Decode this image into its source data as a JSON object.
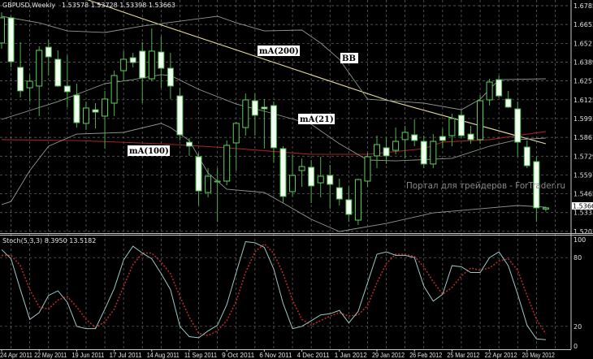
{
  "chart_data": {
    "type": "candlestick",
    "title": "GBPUSD,Weekly",
    "ohlc_readout": "1.53578 1.53728 1.53398 1.53663",
    "current_price": "1.53663",
    "price_axis_labels": [
      "1.67850",
      "1.66530",
      "1.65210",
      "1.63890",
      "1.62570",
      "1.61250",
      "1.59930",
      "1.58610",
      "1.57290",
      "1.55970",
      "1.54650",
      "1.53330",
      "1.52010"
    ],
    "x_tick_labels": [
      {
        "date": "2011-04-24",
        "label": "24 Apr 2011"
      },
      {
        "date": "2011-05-22",
        "label": "22 May 2011"
      },
      {
        "date": "2011-06-19",
        "label": "19 Jun 2011"
      },
      {
        "date": "2011-07-17",
        "label": "17 Jul 2011"
      },
      {
        "date": "2011-08-14",
        "label": "14 Aug 2011"
      },
      {
        "date": "2011-09-11",
        "label": "11 Sep 2011"
      },
      {
        "date": "2011-10-09",
        "label": "9 Oct 2011"
      },
      {
        "date": "2011-11-06",
        "label": "6 Nov 2011"
      },
      {
        "date": "2011-12-04",
        "label": "4 Dec 2011"
      },
      {
        "date": "2012-01-01",
        "label": "1 Jan 2012"
      },
      {
        "date": "2012-01-29",
        "label": "29 Jan 2012"
      },
      {
        "date": "2012-02-26",
        "label": "26 Feb 2012"
      },
      {
        "date": "2012-03-25",
        "label": "25 Mar 2012"
      },
      {
        "date": "2012-04-22",
        "label": "22 Apr 2012"
      },
      {
        "date": "2012-05-20",
        "label": "20 May 2012"
      }
    ],
    "grid": true,
    "colors": {
      "background": "#000000",
      "grid": "#6a6a6a",
      "bull": "#5fd05f",
      "bear_fill": "#f0fff0",
      "wick": "#4caf4c",
      "ma200": "#e6dca0",
      "ma100": "#a02424",
      "bands": "#8c9a8c",
      "stoch_k": "#9cc8c4",
      "stoch_d": "#b02a2a"
    },
    "candles_columns": [
      "date",
      "open",
      "high",
      "low",
      "close"
    ],
    "candles": [
      [
        "2011-04-24",
        1.6523,
        1.6739,
        1.6483,
        1.67
      ],
      [
        "2011-05-01",
        1.67,
        1.6711,
        1.6352,
        1.6392
      ],
      [
        "2011-05-08",
        1.6352,
        1.6529,
        1.6141,
        1.6187
      ],
      [
        "2011-05-15",
        1.6209,
        1.6301,
        1.6112,
        1.6255
      ],
      [
        "2011-05-22",
        1.6221,
        1.65,
        1.601,
        1.6472
      ],
      [
        "2011-05-29",
        1.6494,
        1.6546,
        1.6295,
        1.6426
      ],
      [
        "2011-06-05",
        1.6409,
        1.6472,
        1.6215,
        1.6221
      ],
      [
        "2011-06-12",
        1.6221,
        1.6437,
        1.6073,
        1.6181
      ],
      [
        "2011-06-19",
        1.6158,
        1.6238,
        1.593,
        1.5964
      ],
      [
        "2011-06-26",
        1.5959,
        1.6112,
        1.5913,
        1.6067
      ],
      [
        "2011-07-03",
        1.6055,
        1.6101,
        1.5924,
        1.6038
      ],
      [
        "2011-07-10",
        1.601,
        1.6187,
        1.5782,
        1.613
      ],
      [
        "2011-07-17",
        1.6101,
        1.6329,
        1.601,
        1.6295
      ],
      [
        "2011-07-24",
        1.6329,
        1.6466,
        1.6255,
        1.6409
      ],
      [
        "2011-07-31",
        1.642,
        1.6454,
        1.6352,
        1.6386
      ],
      [
        "2011-08-07",
        1.6466,
        1.6529,
        1.6101,
        1.6278
      ],
      [
        "2011-08-14",
        1.6272,
        1.6625,
        1.6255,
        1.6466
      ],
      [
        "2011-08-21",
        1.646,
        1.6568,
        1.6209,
        1.6346
      ],
      [
        "2011-08-28",
        1.6346,
        1.6454,
        1.613,
        1.6221
      ],
      [
        "2011-09-04",
        1.6152,
        1.6209,
        1.5839,
        1.5879
      ],
      [
        "2011-09-11",
        1.5827,
        1.5856,
        1.5731,
        1.5799
      ],
      [
        "2011-09-18",
        1.5725,
        1.5753,
        1.5383,
        1.5485
      ],
      [
        "2011-09-25",
        1.5474,
        1.5645,
        1.544,
        1.5588
      ],
      [
        "2011-10-02",
        1.5554,
        1.5645,
        1.5269,
        1.5548
      ],
      [
        "2011-10-09",
        1.5554,
        1.5839,
        1.5525,
        1.5805
      ],
      [
        "2011-10-16",
        1.5822,
        1.597,
        1.5628,
        1.5959
      ],
      [
        "2011-10-23",
        1.593,
        1.6169,
        1.5873,
        1.6124
      ],
      [
        "2011-10-30",
        1.6118,
        1.6169,
        1.5873,
        1.6016
      ],
      [
        "2011-11-06",
        1.6073,
        1.613,
        1.5782,
        1.6061
      ],
      [
        "2011-11-13",
        1.6084,
        1.6112,
        1.5685,
        1.5788
      ],
      [
        "2011-11-20",
        1.5782,
        1.5799,
        1.54,
        1.5446
      ],
      [
        "2011-11-27",
        1.548,
        1.5742,
        1.5446,
        1.5594
      ],
      [
        "2011-12-04",
        1.5628,
        1.5713,
        1.5514,
        1.5656
      ],
      [
        "2011-12-11",
        1.5651,
        1.5702,
        1.54,
        1.552
      ],
      [
        "2011-12-18",
        1.5542,
        1.5725,
        1.544,
        1.5588
      ],
      [
        "2011-12-25",
        1.5594,
        1.5668,
        1.536,
        1.5531
      ],
      [
        "2012-01-01",
        1.5508,
        1.5571,
        1.5383,
        1.5428
      ],
      [
        "2012-01-08",
        1.5423,
        1.5514,
        1.5269,
        1.532
      ],
      [
        "2012-01-15",
        1.528,
        1.5571,
        1.5246,
        1.5565
      ],
      [
        "2012-01-22",
        1.5554,
        1.5753,
        1.5514,
        1.5725
      ],
      [
        "2012-01-29",
        1.5731,
        1.5873,
        1.5645,
        1.581
      ],
      [
        "2012-02-05",
        1.5788,
        1.5856,
        1.5674,
        1.5731
      ],
      [
        "2012-02-12",
        1.577,
        1.593,
        1.5742,
        1.5833
      ],
      [
        "2012-02-19",
        1.5845,
        1.5941,
        1.5713,
        1.5896
      ],
      [
        "2012-02-26",
        1.5879,
        1.5987,
        1.5799,
        1.5839
      ],
      [
        "2012-03-04",
        1.5833,
        1.5873,
        1.5645,
        1.5674
      ],
      [
        "2012-03-11",
        1.5674,
        1.5884,
        1.5645,
        1.5833
      ],
      [
        "2012-03-18",
        1.5867,
        1.5924,
        1.5788,
        1.5839
      ],
      [
        "2012-03-25",
        1.5873,
        1.6027,
        1.5799,
        1.5993
      ],
      [
        "2012-04-01",
        1.6016,
        1.6055,
        1.5856,
        1.5873
      ],
      [
        "2012-04-08",
        1.5884,
        1.5941,
        1.5816,
        1.5845
      ],
      [
        "2012-04-15",
        1.5845,
        1.6158,
        1.5816,
        1.6118
      ],
      [
        "2012-04-22",
        1.6124,
        1.6272,
        1.6084,
        1.6249
      ],
      [
        "2012-04-29",
        1.6266,
        1.6295,
        1.6141,
        1.6152
      ],
      [
        "2012-05-06",
        1.613,
        1.6187,
        1.6067,
        1.6073
      ],
      [
        "2012-05-13",
        1.6061,
        1.6112,
        1.5731,
        1.5827
      ],
      [
        "2012-05-20",
        1.5793,
        1.5839,
        1.5645,
        1.5662
      ],
      [
        "2012-05-27",
        1.5691,
        1.5725,
        1.5269,
        1.5366
      ],
      [
        "2012-06-03",
        1.53578,
        1.53728,
        1.53398,
        1.53663
      ]
    ],
    "overlays": [
      {
        "name": "mA(200)",
        "key": "ma200",
        "points": [
          [
            "2011-06-26",
            1.683
          ],
          [
            "2011-08-07",
            1.6694
          ],
          [
            "2012-02-05",
            1.6124
          ],
          [
            "2012-06-03",
            1.5816
          ]
        ]
      },
      {
        "name": "mA(100)",
        "key": "ma100",
        "points": [
          [
            "2011-04-24",
            1.5845
          ],
          [
            "2011-06-19",
            1.5839
          ],
          [
            "2011-08-21",
            1.5816
          ],
          [
            "2011-10-09",
            1.5788
          ],
          [
            "2011-12-11",
            1.5742
          ],
          [
            "2012-01-22",
            1.5742
          ],
          [
            "2012-03-04",
            1.5782
          ],
          [
            "2012-03-18",
            1.5828
          ],
          [
            "2012-04-22",
            1.5845
          ],
          [
            "2012-06-03",
            1.5902
          ]
        ]
      },
      {
        "name": "mA(21)",
        "key": "bands",
        "points": [
          [
            "2011-04-24",
            1.5987
          ],
          [
            "2011-06-05",
            1.6112
          ],
          [
            "2011-07-10",
            1.6238
          ],
          [
            "2011-07-31",
            1.6266
          ],
          [
            "2011-08-21",
            1.6301
          ],
          [
            "2011-08-28",
            1.6295
          ],
          [
            "2011-09-18",
            1.6198
          ],
          [
            "2011-10-16",
            1.6095
          ],
          [
            "2011-11-13",
            1.6027
          ],
          [
            "2011-12-11",
            1.5953
          ],
          [
            "2012-01-01",
            1.5816
          ],
          [
            "2012-01-22",
            1.5702
          ],
          [
            "2012-02-12",
            1.5696
          ],
          [
            "2012-03-25",
            1.5714
          ],
          [
            "2012-04-22",
            1.5799
          ],
          [
            "2012-05-13",
            1.5845
          ],
          [
            "2012-06-03",
            1.5856
          ]
        ]
      },
      {
        "name": "BB",
        "key": "bands",
        "points": [
          [
            "2011-04-24",
            1.6711
          ],
          [
            "2011-05-22",
            1.6665
          ],
          [
            "2011-06-12",
            1.6608
          ],
          [
            "2011-07-10",
            1.6597
          ],
          [
            "2011-08-07",
            1.6642
          ],
          [
            "2011-10-02",
            1.6711
          ],
          [
            "2011-10-16",
            1.6665
          ],
          [
            "2011-11-06",
            1.6608
          ],
          [
            "2011-12-04",
            1.6614
          ],
          [
            "2011-12-18",
            1.6523
          ],
          [
            "2012-01-01",
            1.6409
          ],
          [
            "2012-01-22",
            1.6129
          ],
          [
            "2012-03-04",
            1.6101
          ],
          [
            "2012-04-01",
            1.6055
          ],
          [
            "2012-04-15",
            1.6129
          ],
          [
            "2012-04-29",
            1.6266
          ],
          [
            "2012-06-03",
            1.6272
          ]
        ]
      },
      {
        "name": "",
        "key": "bands",
        "points": [
          [
            "2011-04-24",
            1.5389
          ],
          [
            "2011-05-01",
            1.5411
          ],
          [
            "2011-05-15",
            1.5628
          ],
          [
            "2011-05-29",
            1.5799
          ],
          [
            "2011-06-12",
            1.5856
          ],
          [
            "2011-06-19",
            1.5884
          ],
          [
            "2011-07-24",
            1.5896
          ],
          [
            "2011-08-21",
            1.5959
          ],
          [
            "2011-08-28",
            1.593
          ],
          [
            "2011-09-11",
            1.5839
          ],
          [
            "2011-09-25",
            1.5611
          ],
          [
            "2011-10-09",
            1.5497
          ],
          [
            "2011-11-06",
            1.5474
          ],
          [
            "2011-11-20",
            1.54
          ],
          [
            "2011-12-11",
            1.5286
          ],
          [
            "2012-01-01",
            1.52
          ],
          [
            "2012-01-08",
            1.5212
          ],
          [
            "2012-02-05",
            1.5257
          ],
          [
            "2012-03-11",
            1.5331
          ],
          [
            "2012-05-13",
            1.5383
          ],
          [
            "2012-06-03",
            1.5371
          ]
        ]
      }
    ],
    "overlay_labels": [
      "mA(200)",
      "BB",
      "mA(21)",
      "mA(100)"
    ],
    "watermark": "Портал для трейдеров - ForTrader.ru",
    "stochastic": {
      "label": "Stoch(5,3,3) 8.3950 13.5182",
      "axis_labels": [
        "100",
        "80",
        "20",
        "0"
      ],
      "ylim": [
        0,
        100
      ],
      "k": [
        87,
        79,
        52,
        26,
        32,
        47,
        51,
        41,
        20,
        18,
        18,
        35,
        53,
        78,
        90,
        84,
        79,
        66,
        52,
        20,
        11,
        10,
        16,
        21,
        39,
        67,
        94,
        93,
        89,
        70,
        40,
        18,
        20,
        25,
        30,
        31,
        34,
        23,
        33,
        58,
        83,
        85,
        82,
        82,
        80,
        55,
        42,
        48,
        73,
        72,
        67,
        67,
        80,
        85,
        73,
        48,
        21,
        9,
        8.395
      ],
      "d": [
        82,
        82,
        73,
        52,
        37,
        35,
        43,
        46,
        37,
        26,
        19,
        24,
        35,
        55,
        74,
        84,
        84,
        76,
        66,
        46,
        28,
        14,
        12,
        16,
        25,
        42,
        67,
        85,
        92,
        84,
        66,
        43,
        26,
        21,
        25,
        29,
        32,
        29,
        30,
        38,
        58,
        75,
        83,
        83,
        81,
        72,
        59,
        48,
        54,
        64,
        71,
        69,
        71,
        77,
        79,
        69,
        47,
        26,
        13.5182
      ]
    }
  }
}
